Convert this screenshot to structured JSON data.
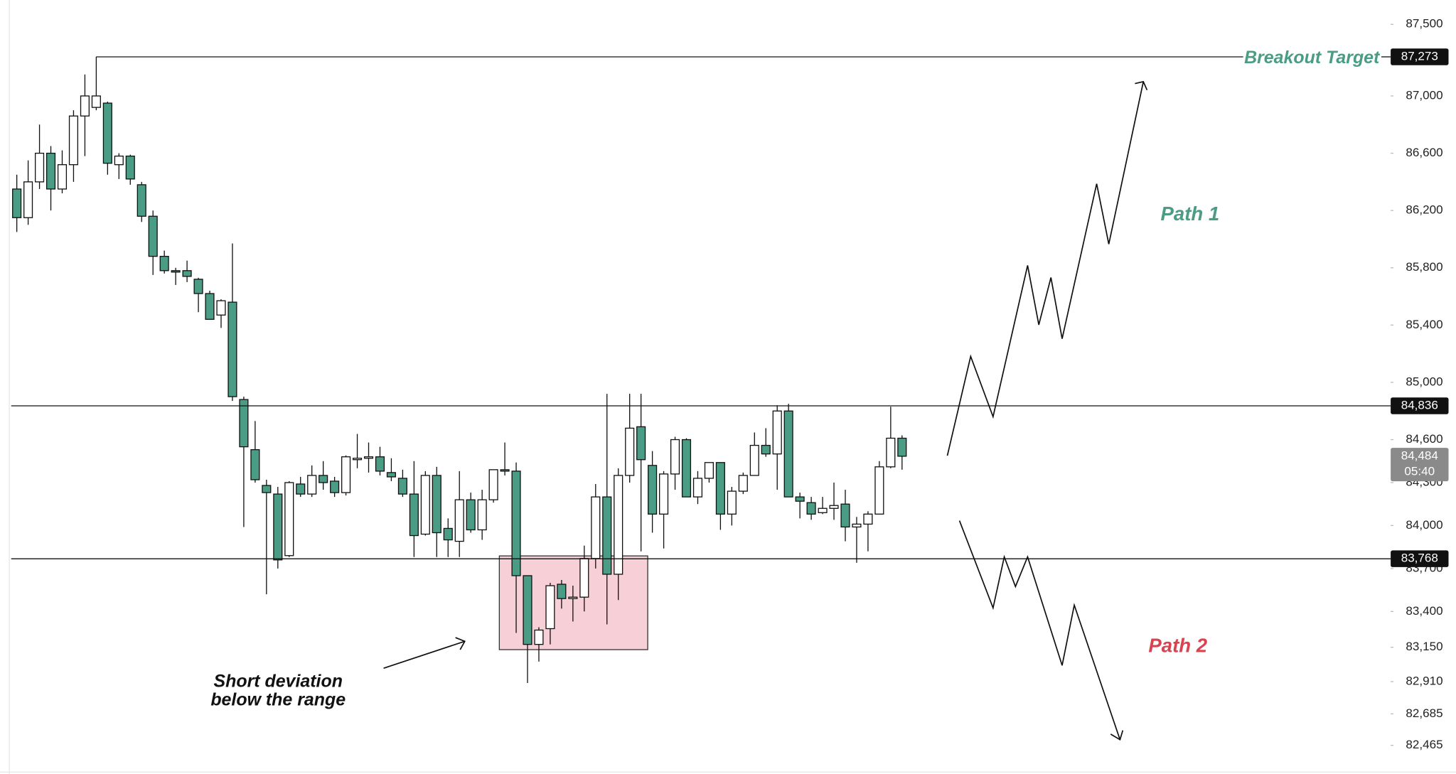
{
  "chart_data": {
    "type": "candlestick",
    "open": [
      86350,
      86150,
      86400,
      86600,
      86350,
      86520,
      86860,
      86920,
      86950,
      86520,
      86580,
      86380,
      86160,
      85880,
      85780,
      85780,
      85720,
      85620,
      85470,
      85560,
      84880,
      84530,
      84280,
      84220,
      83790,
      84290,
      84220,
      84350,
      84310,
      84230,
      84460,
      84470,
      84480,
      84370,
      84330,
      84220,
      83940,
      84350,
      83980,
      83890,
      84180,
      83970,
      84180,
      84390,
      84380,
      83650,
      83170,
      83280,
      83590,
      83490,
      83500,
      83770,
      84200,
      83660,
      84350,
      84690,
      84420,
      84080,
      84360,
      84600,
      84200,
      84330,
      84440,
      84080,
      84240,
      84350,
      84560,
      84500,
      84800,
      84200,
      84160,
      84090,
      84120,
      84150,
      83990,
      84010,
      84080,
      84410,
      84610
    ],
    "high": [
      86450,
      86550,
      86800,
      86650,
      86620,
      86900,
      87150,
      87273,
      86960,
      86600,
      86590,
      86400,
      86200,
      85920,
      85800,
      85850,
      85730,
      85640,
      85580,
      85970,
      84900,
      84730,
      84320,
      84270,
      84310,
      84340,
      84420,
      84450,
      84340,
      84490,
      84640,
      84580,
      84550,
      84470,
      84390,
      84450,
      84380,
      84410,
      84050,
      84380,
      84230,
      84250,
      84390,
      84580,
      84440,
      83650,
      83290,
      83600,
      83620,
      83580,
      83860,
      84290,
      84920,
      84400,
      84920,
      84920,
      84520,
      84380,
      84620,
      84610,
      84380,
      84440,
      84440,
      84270,
      84370,
      84650,
      84680,
      84840,
      84850,
      84230,
      84200,
      84200,
      84300,
      84250,
      84060,
      84100,
      84450,
      84830,
      84630
    ],
    "low": [
      86050,
      86100,
      86350,
      86200,
      86320,
      86400,
      86580,
      86900,
      86450,
      86420,
      86380,
      86120,
      85750,
      85760,
      85680,
      85700,
      85490,
      85440,
      85380,
      84870,
      83990,
      84300,
      83520,
      83700,
      83780,
      84200,
      84200,
      84250,
      84200,
      84210,
      84400,
      84370,
      84350,
      84310,
      84200,
      83780,
      83930,
      83780,
      83780,
      83780,
      83950,
      83900,
      84160,
      84350,
      83250,
      82900,
      83050,
      83170,
      83420,
      83330,
      83400,
      83700,
      83310,
      83480,
      84300,
      83820,
      83950,
      83840,
      84250,
      84200,
      84150,
      84300,
      83970,
      84000,
      84220,
      84350,
      84480,
      84250,
      84200,
      84050,
      84040,
      84080,
      84040,
      83890,
      83740,
      83820,
      84080,
      84400,
      84390
    ],
    "close": [
      86150,
      86400,
      86600,
      86350,
      86520,
      86860,
      87000,
      87000,
      86530,
      86580,
      86420,
      86160,
      85880,
      85780,
      85770,
      85740,
      85620,
      85440,
      85570,
      84900,
      84550,
      84320,
      84230,
      83760,
      84300,
      84220,
      84350,
      84300,
      84230,
      84480,
      84470,
      84480,
      84380,
      84340,
      84220,
      83930,
      84350,
      83950,
      83900,
      84180,
      83970,
      84180,
      84390,
      84380,
      83650,
      83170,
      83270,
      83580,
      83490,
      83500,
      83770,
      84200,
      83660,
      84350,
      84680,
      84460,
      84080,
      84360,
      84600,
      84200,
      84330,
      84440,
      84080,
      84240,
      84350,
      84560,
      84500,
      84800,
      84200,
      84170,
      84080,
      84120,
      84140,
      83990,
      84010,
      84080,
      84410,
      84610,
      84484
    ],
    "up_color": "#ffffff",
    "down_color": "#4a9c84",
    "ylim": [
      82265,
      87670
    ],
    "yticks": [
      {
        "value": 87500,
        "label": "87,500"
      },
      {
        "value": 87000,
        "label": "87,000"
      },
      {
        "value": 86600,
        "label": "86,600"
      },
      {
        "value": 86200,
        "label": "86,200"
      },
      {
        "value": 85800,
        "label": "85,800"
      },
      {
        "value": 85400,
        "label": "85,400"
      },
      {
        "value": 85000,
        "label": "85,000"
      },
      {
        "value": 84600,
        "label": "84,600"
      },
      {
        "value": 84300,
        "label": "84,300"
      },
      {
        "value": 84000,
        "label": "84,000"
      },
      {
        "value": 83700,
        "label": "83,700"
      },
      {
        "value": 83400,
        "label": "83,400"
      },
      {
        "value": 83150,
        "label": "83,150"
      },
      {
        "value": 82910,
        "label": "82,910"
      },
      {
        "value": 82685,
        "label": "82,685"
      },
      {
        "value": 82465,
        "label": "82,465"
      }
    ],
    "levels": [
      {
        "value": 87273,
        "label": "87,273",
        "text": "Breakout Target"
      },
      {
        "value": 84836,
        "label": "84,836"
      },
      {
        "value": 83768,
        "label": "83,768"
      }
    ],
    "last_price": {
      "value": 84484,
      "label": "84,484",
      "countdown": "05:40"
    },
    "annotations": [
      "Path 1",
      "Path 2",
      "Short deviation",
      "below the range"
    ]
  }
}
